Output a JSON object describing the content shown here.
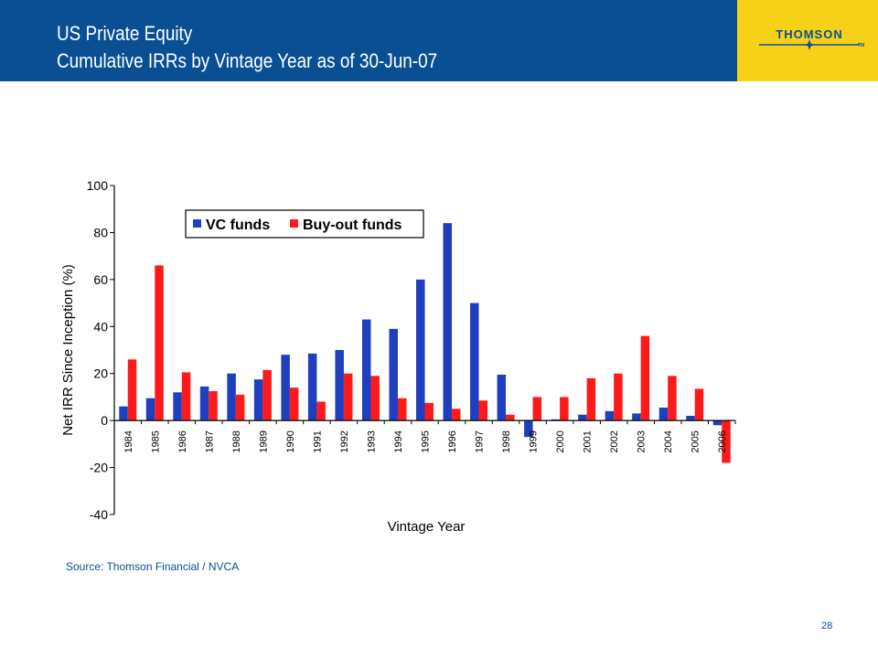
{
  "header": {
    "title_line1": "US Private Equity",
    "title_line2": "Cumulative IRRs by Vintage Year as of 30-Jun-07"
  },
  "logo": {
    "text": "THOMSON",
    "tm": "TM"
  },
  "source": "Source: Thomson Financial / NVCA",
  "page_number": "28",
  "colors": {
    "header_bg": "#0a4f94",
    "logo_bg": "#f7d117",
    "vc": "#1f3fbf",
    "buyout": "#ff1a1a"
  },
  "chart_data": {
    "type": "bar",
    "xlabel": "Vintage Year",
    "ylabel": "Net IRR Since Inception (%)",
    "ylim": [
      -40,
      100
    ],
    "yticks": [
      100,
      80,
      60,
      40,
      20,
      0,
      -20,
      -40
    ],
    "grid": false,
    "legend_position": "top-left",
    "categories": [
      "1984",
      "1985",
      "1986",
      "1987",
      "1988",
      "1989",
      "1990",
      "1991",
      "1992",
      "1993",
      "1994",
      "1995",
      "1996",
      "1997",
      "1998",
      "1999",
      "2000",
      "2001",
      "2002",
      "2003",
      "2004",
      "2005",
      "2006"
    ],
    "series": [
      {
        "name": "VC funds",
        "values": [
          6,
          9.5,
          12,
          14.5,
          20,
          17.5,
          28,
          28.5,
          30,
          43,
          39,
          60,
          84,
          50,
          19.5,
          -7,
          0.5,
          2.5,
          4,
          3,
          5.5,
          2,
          -2
        ]
      },
      {
        "name": "Buy-out funds",
        "values": [
          26,
          66,
          20.5,
          12.5,
          11,
          21.5,
          14,
          8,
          20,
          19,
          9.5,
          7.5,
          5,
          8.5,
          2.5,
          10,
          10,
          18,
          20,
          36,
          19,
          13.5,
          -18
        ]
      }
    ]
  }
}
